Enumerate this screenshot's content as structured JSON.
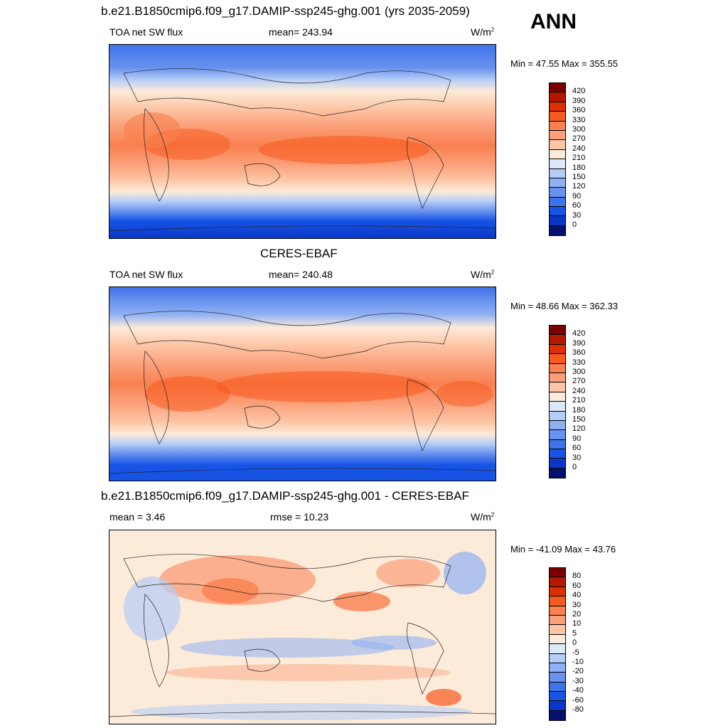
{
  "figure": {
    "season": "ANN"
  },
  "panels": [
    {
      "id": "model",
      "title": "b.e21.B1850cmip6.f09_g17.DAMIP-ssp245-ghg.001 (yrs 2035-2059)",
      "left_label": "TOA net SW flux",
      "center_label": "mean= 243.94",
      "units": "W/m",
      "units_sup": "2",
      "minmax": "Min =  47.55 Max = 355.55",
      "colorbar": {
        "ticks": [
          "420",
          "390",
          "360",
          "330",
          "300",
          "270",
          "240",
          "210",
          "180",
          "150",
          "120",
          "90",
          "60",
          "30",
          "0"
        ],
        "colors": [
          "#7a0000",
          "#b31800",
          "#dd3000",
          "#f75a1e",
          "#f9804f",
          "#fba07a",
          "#fdc6a6",
          "#fdebd9",
          "#dbe9fb",
          "#b5cdf7",
          "#8fb0f3",
          "#6992ef",
          "#3f73ea",
          "#1754e6",
          "#0a37c8",
          "#05106e"
        ]
      }
    },
    {
      "id": "obs",
      "title": "CERES-EBAF",
      "left_label": "TOA net SW flux",
      "center_label": "mean= 240.48",
      "units": "W/m",
      "units_sup": "2",
      "minmax": "Min =  48.66 Max = 362.33",
      "colorbar": {
        "ticks": [
          "420",
          "390",
          "360",
          "330",
          "300",
          "270",
          "240",
          "210",
          "180",
          "150",
          "120",
          "90",
          "60",
          "30",
          "0"
        ],
        "colors": [
          "#7a0000",
          "#b31800",
          "#dd3000",
          "#f75a1e",
          "#f9804f",
          "#fba07a",
          "#fdc6a6",
          "#fdebd9",
          "#dbe9fb",
          "#b5cdf7",
          "#8fb0f3",
          "#6992ef",
          "#3f73ea",
          "#1754e6",
          "#0a37c8",
          "#05106e"
        ]
      }
    },
    {
      "id": "diff",
      "title": "b.e21.B1850cmip6.f09_g17.DAMIP-ssp245-ghg.001 - CERES-EBAF",
      "left_label": "mean =   3.46",
      "center_label": "rmse =  10.23",
      "units": "W/m",
      "units_sup": "2",
      "minmax": "Min = -41.09 Max =  43.76",
      "colorbar": {
        "ticks": [
          "80",
          "60",
          "40",
          "30",
          "20",
          "10",
          "5",
          "0",
          "-5",
          "-10",
          "-20",
          "-30",
          "-40",
          "-60",
          "-80"
        ],
        "colors": [
          "#7a0000",
          "#b31800",
          "#dd3000",
          "#f75a1e",
          "#f9804f",
          "#fba07a",
          "#fdc6a6",
          "#fdebd9",
          "#dbe9fb",
          "#b5cdf7",
          "#8fb0f3",
          "#6992ef",
          "#3f73ea",
          "#1754e6",
          "#0a37c8",
          "#05106e"
        ]
      }
    }
  ]
}
